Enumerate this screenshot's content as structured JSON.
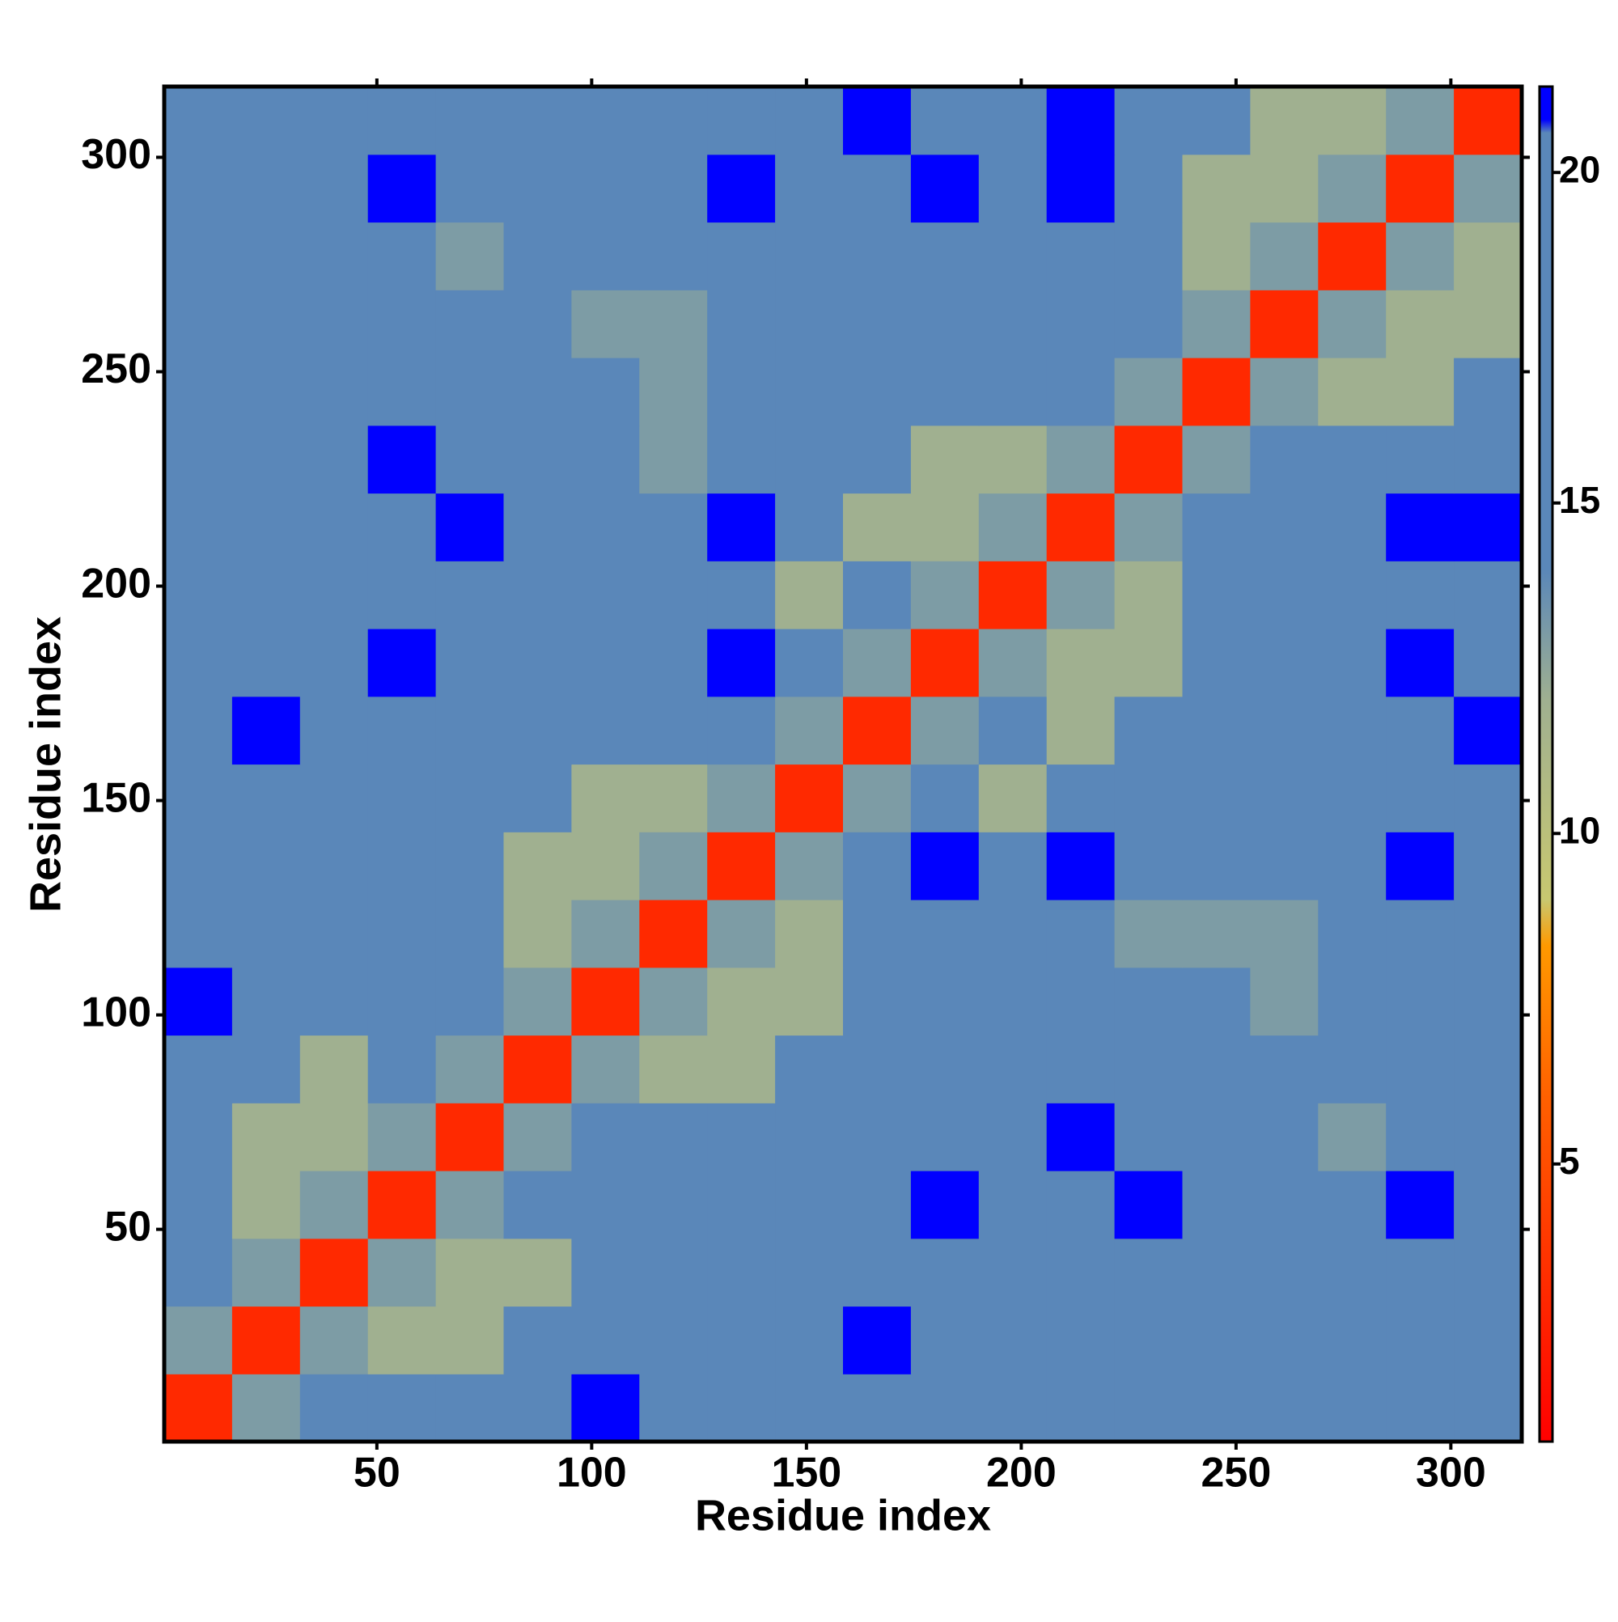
{
  "chart_data": {
    "type": "heatmap",
    "x_label": "Residue index",
    "y_label": "Residue index",
    "x": [
      8.4,
      24.2,
      40,
      55.8,
      71.6,
      87.4,
      103.2,
      119,
      134.8,
      150.6,
      166.4,
      182.2,
      198,
      213.8,
      229.6,
      245.4,
      261.2,
      277,
      292.8,
      308.6
    ],
    "y": [
      8.4,
      24.2,
      40,
      55.8,
      71.6,
      87.4,
      103.2,
      119,
      134.8,
      150.6,
      166.4,
      182.2,
      198,
      213.8,
      229.6,
      245.4,
      261.2,
      277,
      292.8,
      308.6
    ],
    "z": [
      [
        3,
        13,
        16,
        20.5,
        20.5,
        20.5,
        21,
        20.5,
        20.5,
        20.5,
        20.5,
        20.5,
        20.5,
        20.5,
        20.5,
        20.5,
        20.5,
        20.5,
        20.5,
        20.5
      ],
      [
        13,
        3,
        13,
        12,
        12,
        19,
        19,
        19,
        19,
        19,
        21,
        19,
        19,
        19,
        19,
        19,
        19,
        19,
        19,
        15
      ],
      [
        16,
        13,
        3,
        13,
        12,
        12,
        19,
        19,
        19,
        19,
        19,
        19,
        19,
        19,
        19,
        19,
        19,
        14,
        14,
        19
      ],
      [
        20.5,
        12,
        13,
        3,
        13,
        16,
        19,
        19,
        19,
        19,
        19,
        21,
        19,
        19,
        21,
        19,
        19,
        19,
        21,
        19
      ],
      [
        20.5,
        12,
        12,
        13,
        3,
        13,
        16,
        19,
        19,
        19,
        19,
        19,
        19,
        21,
        19,
        19,
        19,
        13,
        19,
        14
      ],
      [
        20.5,
        19,
        12,
        16,
        13,
        3,
        13,
        12,
        12,
        19,
        19,
        19,
        19,
        19,
        19,
        19,
        19,
        14,
        19,
        19
      ],
      [
        21,
        19,
        19,
        19,
        16,
        13,
        3,
        13,
        12,
        12,
        19,
        19,
        19,
        19,
        19,
        19,
        13,
        19,
        19,
        19
      ],
      [
        20.5,
        19,
        19,
        19,
        19,
        12,
        13,
        3,
        13,
        12,
        19,
        19,
        15,
        19,
        13,
        13,
        13,
        19,
        19,
        19
      ],
      [
        20.5,
        19,
        19,
        19,
        19,
        12,
        12,
        13,
        3,
        13,
        16,
        21,
        15,
        21,
        19,
        19,
        19,
        19,
        21,
        19
      ],
      [
        20.5,
        19,
        19,
        19,
        19,
        19,
        12,
        12,
        13,
        3,
        13,
        16,
        12,
        19,
        14,
        19,
        19,
        19,
        19,
        19
      ],
      [
        20.5,
        21,
        19,
        19,
        19,
        19,
        19,
        19,
        16,
        13,
        3,
        13,
        16,
        12,
        19,
        19,
        19,
        19,
        19,
        21
      ],
      [
        20.5,
        19,
        19,
        21,
        19,
        19,
        19,
        19,
        21,
        16,
        13,
        3,
        13,
        12,
        12,
        19,
        19,
        19,
        21,
        19
      ],
      [
        20.5,
        19,
        19,
        19,
        19,
        19,
        19,
        15,
        15,
        12,
        16,
        13,
        3,
        13,
        12,
        19,
        19,
        19,
        19,
        19
      ],
      [
        20.5,
        19,
        19,
        19,
        21,
        19,
        19,
        19,
        21,
        19,
        12,
        12,
        13,
        3,
        13,
        16,
        19,
        19,
        21,
        21
      ],
      [
        20.5,
        19,
        19,
        21,
        19,
        19,
        19,
        13,
        19,
        14,
        19,
        12,
        12,
        13,
        3,
        13,
        16,
        19,
        19,
        19
      ],
      [
        20.5,
        19,
        19,
        19,
        19,
        19,
        19,
        13,
        19,
        19,
        19,
        19,
        19,
        16,
        13,
        3,
        13,
        12,
        12,
        19
      ],
      [
        20.5,
        19,
        19,
        19,
        19,
        19,
        13,
        13,
        19,
        19,
        19,
        19,
        19,
        19,
        16,
        13,
        3,
        13,
        12,
        12
      ],
      [
        20.5,
        19,
        14,
        19,
        13,
        14,
        19,
        19,
        19,
        19,
        19,
        19,
        19,
        19,
        19,
        12,
        13,
        3,
        13,
        12
      ],
      [
        20.5,
        19,
        14,
        21,
        19,
        19,
        19,
        19,
        21,
        19,
        19,
        21,
        19,
        21,
        19,
        12,
        12,
        13,
        3,
        13
      ],
      [
        20.5,
        15,
        19,
        19,
        14,
        19,
        19,
        19,
        19,
        19,
        21,
        19,
        19,
        21,
        19,
        19,
        12,
        12,
        13,
        3
      ]
    ],
    "xlim": [
      0.5,
      316.5
    ],
    "ylim": [
      0.5,
      316.5
    ],
    "xticks": [
      50,
      100,
      150,
      200,
      250,
      300
    ],
    "yticks": [
      50,
      100,
      150,
      200,
      250,
      300
    ],
    "zlim": [
      0.8,
      21.3
    ],
    "zticks": [
      5,
      10,
      15,
      20
    ],
    "colorscale": [
      [
        0.8,
        "#ff0000"
      ],
      [
        6,
        "#ff6000"
      ],
      [
        8.3,
        "#ff9900"
      ],
      [
        9,
        "#c8c870"
      ],
      [
        12,
        "#a0b090"
      ],
      [
        14,
        "#5a87b9"
      ],
      [
        20.6,
        "#5a87b9"
      ],
      [
        20.8,
        "#0000ff"
      ],
      [
        21.3,
        "#0000ff"
      ]
    ]
  }
}
